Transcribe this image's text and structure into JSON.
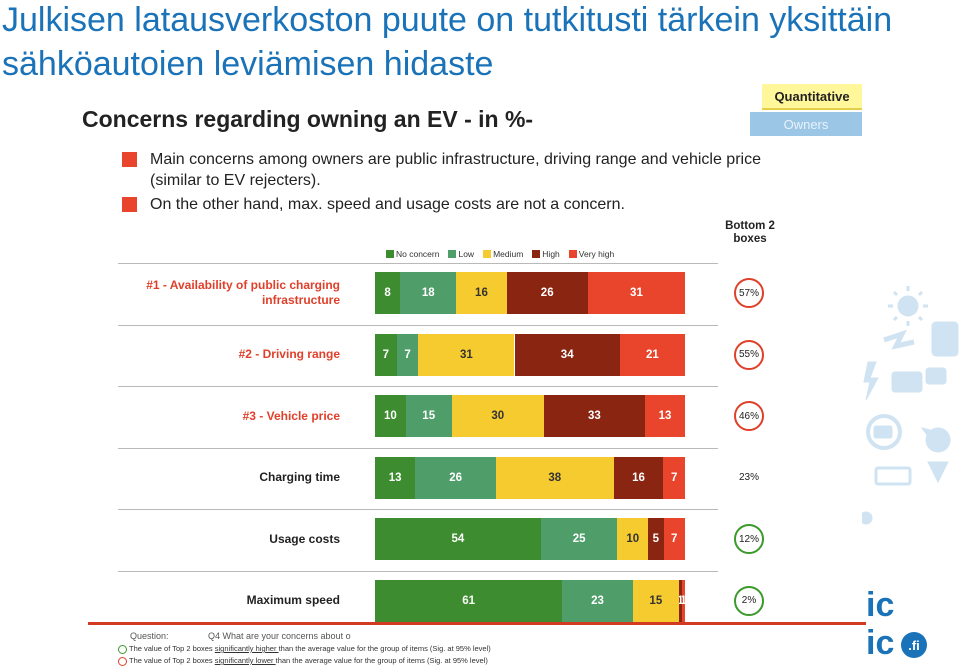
{
  "slide": {
    "headline": "Julkisen latausverkoston puute on tutkitusti tärkein yksittäin sähköautoien leviämisen hidaste",
    "tag_quantitative": "Quantitative",
    "tag_owners": "Owners"
  },
  "bullets": [
    "Main concerns among owners are public infrastructure, driving range and vehicle price (similar to EV rejecters).",
    "On the other hand, max. speed and usage costs are not a concern."
  ],
  "footer": {
    "question_label": "Question:",
    "question_text": "Q4 What are your concerns about o",
    "note_higher_pre": "The value of Top 2 boxes ",
    "note_higher_u": "significantly higher ",
    "note_higher_post": "than the average value for the group of items (Sig. at 95% level)",
    "note_lower_pre": "The value of Top 2 boxes ",
    "note_lower_u": "significantly lower ",
    "note_lower_post": "than the average value for the group of items (Sig. at 95% level)"
  },
  "logo": {
    "line1": "ic",
    "line2": "ic",
    "badge": ".fi"
  },
  "colors": {
    "no_concern": "#3d8c2f",
    "low": "#4f9e6a",
    "medium": "#f6cb2f",
    "high": "#8a2512",
    "very_high": "#e8452c",
    "higher_circle": "#e0402a",
    "lower_circle": "#3a9a2a",
    "label_red": "#e0402a",
    "headline": "#1a73b8"
  },
  "chart_data": {
    "type": "bar",
    "orientation": "horizontal",
    "stacked": true,
    "title": "Concerns regarding owning an EV - in %-",
    "bottom2_header": "Bottom 2 boxes",
    "categories": [
      "#1 - Availability of public charging infrastructure",
      "#2 - Driving range",
      "#3 - Vehicle price",
      "Charging time",
      "Usage costs",
      "Maximum speed"
    ],
    "category_emphasis": [
      "red",
      "red",
      "red",
      "normal",
      "normal",
      "normal"
    ],
    "series": [
      {
        "name": "No concern",
        "values": [
          8,
          7,
          10,
          13,
          54,
          61
        ]
      },
      {
        "name": "Low",
        "values": [
          18,
          7,
          15,
          26,
          25,
          23
        ]
      },
      {
        "name": "Medium",
        "values": [
          16,
          31,
          30,
          38,
          10,
          15
        ]
      },
      {
        "name": "High",
        "values": [
          26,
          34,
          33,
          16,
          5,
          1
        ]
      },
      {
        "name": "Very high",
        "values": [
          31,
          21,
          13,
          7,
          7,
          1
        ]
      }
    ],
    "bottom2": [
      "57%",
      "55%",
      "46%",
      "23%",
      "12%",
      "2%"
    ],
    "bottom2_mark": [
      "higher",
      "higher",
      "higher",
      "none",
      "lower",
      "lower"
    ],
    "legend_position": "top",
    "xlim": [
      0,
      100
    ],
    "grid": false
  }
}
